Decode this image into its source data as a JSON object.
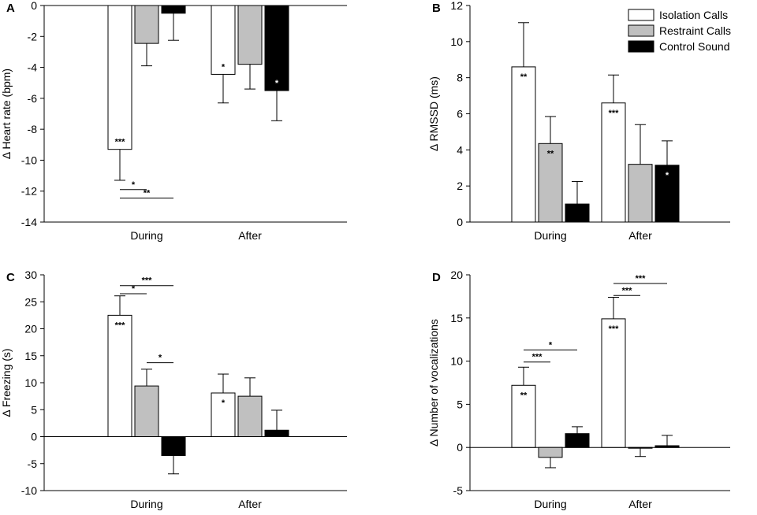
{
  "figure": {
    "legend": [
      {
        "label": "Isolation Calls",
        "fill": "#ffffff"
      },
      {
        "label": "Restraint Calls",
        "fill": "#c0c0c0"
      },
      {
        "label": "Control Sound",
        "fill": "#000000"
      }
    ]
  },
  "chart_data": [
    {
      "panel": "A",
      "type": "bar",
      "ylabel": "Δ Heart rate (bpm)",
      "ylim": [
        -14,
        0
      ],
      "ticks": [
        0,
        -2,
        -4,
        -6,
        -8,
        -10,
        -12,
        -14
      ],
      "tick_labels": [
        "0",
        "-2",
        "-4",
        "-6",
        "-8",
        "-10",
        "-12",
        "-14"
      ],
      "categories": [
        "During",
        "After"
      ],
      "series": [
        {
          "name": "Isolation Calls",
          "values": [
            -9.3,
            -4.45
          ],
          "errors": [
            2.0,
            1.85
          ],
          "sig": [
            "***",
            "*"
          ]
        },
        {
          "name": "Restraint Calls",
          "values": [
            -2.45,
            -3.8
          ],
          "errors": [
            1.45,
            1.6
          ],
          "sig": [
            "",
            ""
          ]
        },
        {
          "name": "Control Sound",
          "values": [
            -0.5,
            -5.5
          ],
          "errors": [
            1.75,
            1.95
          ],
          "sig": [
            "",
            "*"
          ]
        }
      ],
      "brackets": [
        {
          "category": 0,
          "from": 0,
          "to": 1,
          "y": -11.9,
          "label": "*"
        },
        {
          "category": 0,
          "from": 0,
          "to": 2,
          "y": -12.45,
          "label": "**"
        }
      ]
    },
    {
      "panel": "B",
      "type": "bar",
      "ylabel": "Δ RMSSD (ms)",
      "ylim": [
        0,
        12
      ],
      "ticks": [
        0,
        2,
        4,
        6,
        8,
        10,
        12
      ],
      "tick_labels": [
        "0",
        "2",
        "4",
        "6",
        "8",
        "10",
        "12"
      ],
      "categories": [
        "During",
        "After"
      ],
      "series": [
        {
          "name": "Isolation Calls",
          "values": [
            8.6,
            6.6
          ],
          "errors": [
            2.45,
            1.55
          ],
          "sig": [
            "**",
            "***"
          ]
        },
        {
          "name": "Restraint Calls",
          "values": [
            4.35,
            3.2
          ],
          "errors": [
            1.5,
            2.2
          ],
          "sig": [
            "**",
            ""
          ]
        },
        {
          "name": "Control Sound",
          "values": [
            1.0,
            3.15
          ],
          "errors": [
            1.25,
            1.35
          ],
          "sig": [
            "",
            "*"
          ]
        }
      ],
      "brackets": []
    },
    {
      "panel": "C",
      "type": "bar",
      "ylabel": "Δ Freezing (s)",
      "ylim": [
        -10,
        30
      ],
      "ticks": [
        30,
        25,
        20,
        15,
        10,
        5,
        0,
        -5,
        -10
      ],
      "tick_labels": [
        "30",
        "25",
        "20",
        "15",
        "10",
        "5",
        "0",
        "-5",
        "-10"
      ],
      "categories": [
        "During",
        "After"
      ],
      "series": [
        {
          "name": "Isolation Calls",
          "values": [
            22.5,
            8.1
          ],
          "errors": [
            3.6,
            3.5
          ],
          "sig": [
            "***",
            "*"
          ]
        },
        {
          "name": "Restraint Calls",
          "values": [
            9.4,
            7.5
          ],
          "errors": [
            3.1,
            3.4
          ],
          "sig": [
            "",
            ""
          ]
        },
        {
          "name": "Control Sound",
          "values": [
            -3.5,
            1.2
          ],
          "errors": [
            3.4,
            3.7
          ],
          "sig": [
            "",
            ""
          ]
        }
      ],
      "brackets": [
        {
          "category": 0,
          "from": 0,
          "to": 2,
          "y": 28.0,
          "label": "***"
        },
        {
          "category": 0,
          "from": 0,
          "to": 1,
          "y": 26.5,
          "label": "*"
        },
        {
          "category": 0,
          "from": 1,
          "to": 2,
          "y": 13.7,
          "label": "*"
        }
      ]
    },
    {
      "panel": "D",
      "type": "bar",
      "ylabel": "Δ Number of vocalizations",
      "ylim": [
        -5,
        20
      ],
      "ticks": [
        20,
        15,
        10,
        5,
        0,
        -5
      ],
      "tick_labels": [
        "20",
        "15",
        "10",
        "5",
        "0",
        "-5"
      ],
      "categories": [
        "During",
        "After"
      ],
      "series": [
        {
          "name": "Isolation Calls",
          "values": [
            7.2,
            14.9
          ],
          "errors": [
            2.1,
            2.5
          ],
          "sig": [
            "**",
            "***"
          ]
        },
        {
          "name": "Restraint Calls",
          "values": [
            -1.15,
            -0.05
          ],
          "errors": [
            1.2,
            1.0
          ],
          "sig": [
            "",
            ""
          ]
        },
        {
          "name": "Control Sound",
          "values": [
            1.6,
            0.2
          ],
          "errors": [
            0.8,
            1.2
          ],
          "sig": [
            "",
            ""
          ]
        }
      ],
      "brackets": [
        {
          "category": 0,
          "from": 0,
          "to": 2,
          "y": 11.3,
          "label": "*"
        },
        {
          "category": 0,
          "from": 0,
          "to": 1,
          "y": 9.9,
          "label": "***"
        },
        {
          "category": 1,
          "from": 0,
          "to": 2,
          "y": 19.0,
          "label": "***"
        },
        {
          "category": 1,
          "from": 0,
          "to": 1,
          "y": 17.6,
          "label": "***"
        }
      ]
    }
  ]
}
